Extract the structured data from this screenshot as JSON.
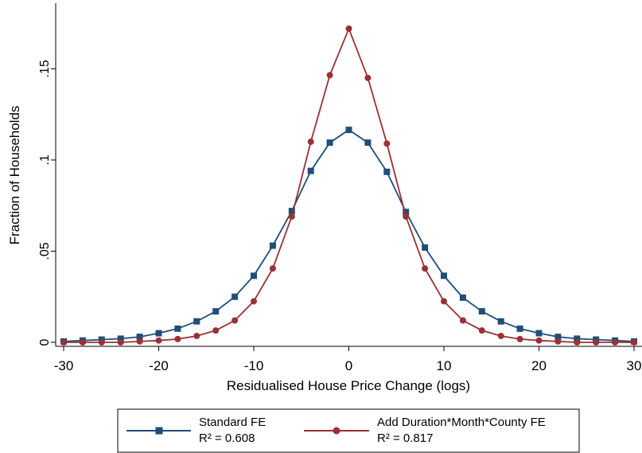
{
  "chart_data": {
    "type": "line",
    "xlabel": "Residualised House Price Change (logs)",
    "ylabel": "Fraction of Households",
    "xlim": [
      -30,
      30
    ],
    "ylim": [
      0,
      0.17
    ],
    "xticks": [
      -30,
      -20,
      -10,
      0,
      10,
      20,
      30
    ],
    "xtick_labels": [
      "-30",
      "-20",
      "-10",
      "0",
      "10",
      "20",
      "30"
    ],
    "yticks": [
      0,
      0.05,
      0.1,
      0.15
    ],
    "ytick_labels": [
      "0",
      ".05",
      ".1",
      ".15"
    ],
    "grid": false,
    "legend_position": "bottom",
    "x": [
      -30,
      -28,
      -26,
      -24,
      -22,
      -20,
      -18,
      -16,
      -14,
      -12,
      -10,
      -8,
      -6,
      -4,
      -2,
      0,
      2,
      4,
      6,
      8,
      10,
      12,
      14,
      16,
      18,
      20,
      22,
      24,
      26,
      28,
      30
    ],
    "series": [
      {
        "name": "Standard FE",
        "r2_label": "R² = 0.608",
        "marker": "square",
        "color": "#1f4e79",
        "values": [
          0.0005,
          0.001,
          0.0015,
          0.002,
          0.003,
          0.005,
          0.0075,
          0.0115,
          0.017,
          0.025,
          0.0365,
          0.053,
          0.072,
          0.094,
          0.1095,
          0.1165,
          0.1095,
          0.0935,
          0.0715,
          0.052,
          0.0365,
          0.0245,
          0.017,
          0.0115,
          0.0075,
          0.005,
          0.003,
          0.002,
          0.0015,
          0.001,
          0.0005
        ]
      },
      {
        "name": "Add Duration*Month*County FE",
        "r2_label": "R² = 0.817",
        "marker": "circle",
        "color": "#9b3035",
        "values": [
          0.0,
          0.0,
          0.0,
          0.0,
          0.0005,
          0.001,
          0.0018,
          0.0035,
          0.0065,
          0.012,
          0.0225,
          0.0405,
          0.069,
          0.11,
          0.1465,
          0.172,
          0.145,
          0.109,
          0.069,
          0.0405,
          0.0225,
          0.012,
          0.0065,
          0.0035,
          0.0018,
          0.001,
          0.0005,
          0.0,
          0.0,
          0.0,
          0.0
        ]
      }
    ]
  }
}
